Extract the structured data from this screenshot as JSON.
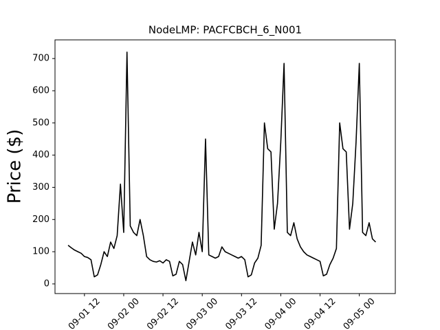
{
  "chart_data": {
    "type": "line",
    "title": "NodeLMP: PACFCBCH_6_N001",
    "y_label": "Price ($)",
    "x": [
      "09-01 07",
      "09-01 08",
      "09-01 09",
      "09-01 10",
      "09-01 11",
      "09-01 12",
      "09-01 13",
      "09-01 14",
      "09-01 15",
      "09-01 16",
      "09-01 17",
      "09-01 18",
      "09-01 19",
      "09-01 20",
      "09-01 21",
      "09-01 22",
      "09-01 23",
      "09-02 00",
      "09-02 01",
      "09-02 02",
      "09-02 03",
      "09-02 04",
      "09-02 05",
      "09-02 06",
      "09-02 07",
      "09-02 08",
      "09-02 09",
      "09-02 10",
      "09-02 11",
      "09-02 12",
      "09-02 13",
      "09-02 14",
      "09-02 15",
      "09-02 16",
      "09-02 17",
      "09-02 18",
      "09-02 19",
      "09-02 20",
      "09-02 21",
      "09-02 22",
      "09-02 23",
      "09-03 00",
      "09-03 01",
      "09-03 02",
      "09-03 03",
      "09-03 04",
      "09-03 05",
      "09-03 06",
      "09-03 07",
      "09-03 08",
      "09-03 09",
      "09-03 10",
      "09-03 11",
      "09-03 12",
      "09-03 13",
      "09-03 14",
      "09-03 15",
      "09-03 16",
      "09-03 17",
      "09-03 18",
      "09-03 19",
      "09-03 20",
      "09-03 21",
      "09-03 22",
      "09-03 23",
      "09-04 00",
      "09-04 01",
      "09-04 02",
      "09-04 03",
      "09-04 04",
      "09-04 05",
      "09-04 06",
      "09-04 07",
      "09-04 08",
      "09-04 09",
      "09-04 10",
      "09-04 11",
      "09-04 12",
      "09-04 13",
      "09-04 14",
      "09-04 15",
      "09-04 16",
      "09-04 17",
      "09-04 18",
      "09-04 19",
      "09-04 20",
      "09-04 21",
      "09-04 22",
      "09-04 23",
      "09-05 00",
      "09-05 01",
      "09-05 02",
      "09-05 03",
      "09-05 04",
      "09-05 05"
    ],
    "values": [
      120,
      112,
      105,
      100,
      95,
      85,
      82,
      75,
      22,
      28,
      60,
      100,
      85,
      130,
      110,
      150,
      310,
      160,
      720,
      180,
      160,
      150,
      200,
      150,
      85,
      75,
      70,
      68,
      72,
      65,
      75,
      70,
      25,
      30,
      70,
      60,
      10,
      70,
      130,
      90,
      160,
      100,
      450,
      90,
      85,
      80,
      85,
      115,
      100,
      95,
      90,
      85,
      80,
      85,
      75,
      22,
      28,
      65,
      80,
      120,
      500,
      420,
      410,
      170,
      250,
      440,
      685,
      160,
      150,
      190,
      140,
      115,
      100,
      90,
      85,
      80,
      75,
      70,
      25,
      30,
      60,
      80,
      110,
      500,
      420,
      410,
      170,
      250,
      440,
      685,
      160,
      150,
      190,
      140,
      130
    ],
    "color": "#000000",
    "xlim": [
      "09-01 03",
      "09-05 11"
    ],
    "xticks": [
      "09-01 12",
      "09-02 00",
      "09-02 12",
      "09-03 00",
      "09-03 12",
      "09-04 00",
      "09-04 12",
      "09-05 00"
    ],
    "ylim": [
      -30,
      758
    ],
    "yticks": [
      0,
      100,
      200,
      300,
      400,
      500,
      600,
      700
    ]
  }
}
